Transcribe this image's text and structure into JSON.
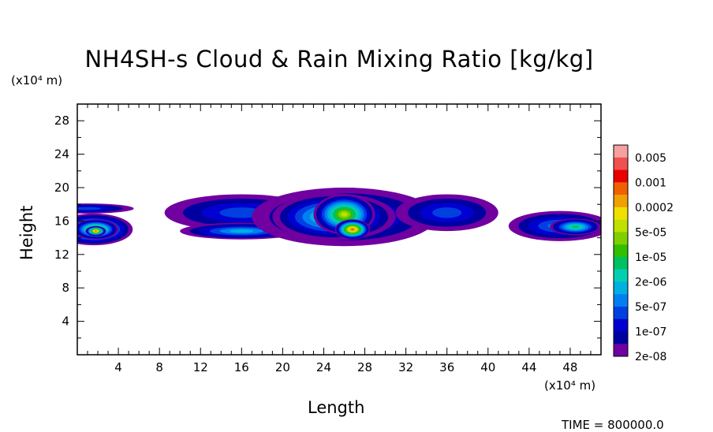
{
  "chart_data": {
    "type": "heatmap",
    "title": "NH4SH-s Cloud & Rain Mixing Ratio [kg/kg]",
    "xlabel": "Length",
    "ylabel": "Height",
    "x_unit": "(x10⁴ m)",
    "y_unit": "(x10⁴ m)",
    "xlim": [
      0,
      51
    ],
    "ylim": [
      0,
      30
    ],
    "x_ticks": [
      4,
      8,
      12,
      16,
      20,
      24,
      28,
      32,
      36,
      40,
      44,
      48
    ],
    "y_ticks": [
      4,
      8,
      12,
      16,
      20,
      24,
      28
    ],
    "grid": false,
    "footer": "TIME = 800000.0",
    "colorbar": {
      "labels": [
        "0.005",
        "0.001",
        "0.0002",
        "5e-05",
        "1e-05",
        "2e-06",
        "5e-07",
        "1e-07",
        "2e-08"
      ],
      "colors_top_to_bottom": [
        "#f7a0a0",
        "#f05050",
        "#e80000",
        "#f06000",
        "#f0a000",
        "#f0e000",
        "#c0e000",
        "#80d000",
        "#30c000",
        "#00c060",
        "#00d0b0",
        "#00b0e0",
        "#0080f0",
        "#0040e0",
        "#0000d0",
        "#0000a0",
        "#7000a0"
      ]
    },
    "field_blobs": [
      {
        "cx": 1.6,
        "cy": 15.0,
        "rx": 3.8,
        "ry": 1.9,
        "level": 8
      },
      {
        "cx": 1.8,
        "cy": 15.0,
        "rx": 2.2,
        "ry": 1.2,
        "level": 10
      },
      {
        "cx": 1.8,
        "cy": 14.8,
        "rx": 1.0,
        "ry": 0.6,
        "level": 13
      },
      {
        "cx": 1.0,
        "cy": 17.5,
        "rx": 4.5,
        "ry": 0.6,
        "level": 3
      },
      {
        "cx": 16.0,
        "cy": 17.0,
        "rx": 7.5,
        "ry": 2.2,
        "level": 3
      },
      {
        "cx": 16.0,
        "cy": 14.8,
        "rx": 6.0,
        "ry": 1.0,
        "level": 5
      },
      {
        "cx": 26.0,
        "cy": 16.5,
        "rx": 9.0,
        "ry": 3.5,
        "level": 4
      },
      {
        "cx": 25.0,
        "cy": 16.5,
        "rx": 6.0,
        "ry": 2.8,
        "level": 7
      },
      {
        "cx": 26.0,
        "cy": 16.8,
        "rx": 3.0,
        "ry": 2.4,
        "level": 10
      },
      {
        "cx": 26.8,
        "cy": 15.0,
        "rx": 1.7,
        "ry": 1.2,
        "level": 13
      },
      {
        "cx": 36.0,
        "cy": 17.0,
        "rx": 5.0,
        "ry": 2.2,
        "level": 3
      },
      {
        "cx": 47.0,
        "cy": 15.4,
        "rx": 5.0,
        "ry": 1.8,
        "level": 4
      },
      {
        "cx": 48.5,
        "cy": 15.3,
        "rx": 2.5,
        "ry": 1.0,
        "level": 7
      }
    ]
  }
}
